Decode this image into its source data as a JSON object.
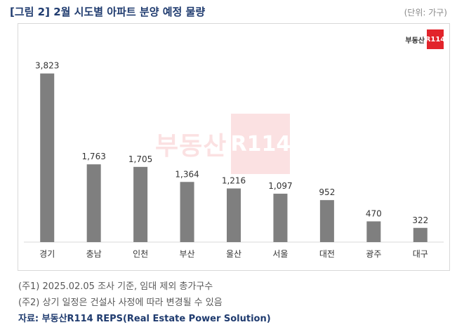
{
  "header": {
    "title": "[그림 2] 2월 시도별 아파트 분양 예정 물량",
    "unit": "(단위: 가구)"
  },
  "logo": {
    "text": "부동산",
    "mark": "R114"
  },
  "watermark": {
    "text": "부동산",
    "mark": "R114"
  },
  "notes": [
    "(주1) 2025.02.05 조사 기준, 임대 제외 총가구수",
    "(주2) 상기 일정은 건설사 사정에 따라 변경될 수 있음"
  ],
  "source": "자료: 부동산R114 REPS(Real Estate Power Solution)",
  "colors": {
    "bar": "#7f7f7f",
    "title": "#1f3b6f",
    "brand": "#e2242b"
  },
  "chart_data": {
    "type": "bar",
    "categories": [
      "경기",
      "충남",
      "인천",
      "부산",
      "울산",
      "서울",
      "대전",
      "광주",
      "대구"
    ],
    "values": [
      3823,
      1763,
      1705,
      1364,
      1216,
      1097,
      952,
      470,
      322
    ],
    "value_labels": [
      "3,823",
      "1,763",
      "1,705",
      "1,364",
      "1,216",
      "1,097",
      "952",
      "470",
      "322"
    ],
    "ylim": [
      0,
      4200
    ],
    "grid": false,
    "legend": "none"
  }
}
